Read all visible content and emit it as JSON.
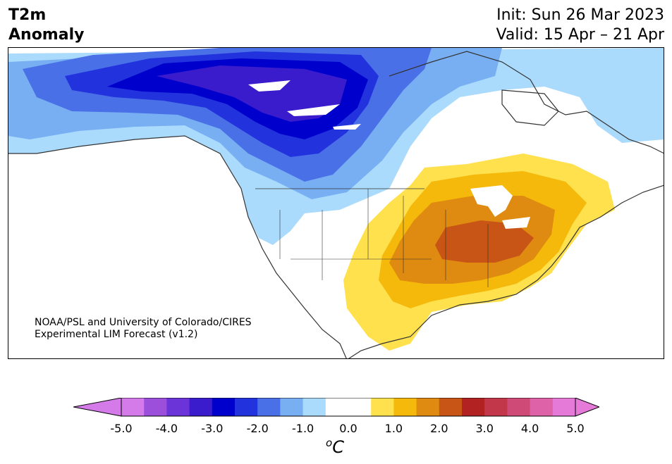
{
  "header": {
    "variable_line1": "T2m",
    "variable_line2": "Anomaly",
    "init_text": "Init: Sun 26 Mar 2023",
    "valid_text": "Valid: 15 Apr – 21 Apr"
  },
  "credit": {
    "line1": "NOAA/PSL and University of Colorado/CIRES",
    "line2": "Experimental LIM Forecast (v1.2)"
  },
  "colorbar": {
    "unit_base": "C",
    "unit_sup": "o",
    "tick_labels": [
      "-5.0",
      "-4.0",
      "-3.0",
      "-2.0",
      "-1.0",
      "0.0",
      "1.0",
      "2.0",
      "3.0",
      "4.0",
      "5.0"
    ],
    "ticks": [
      -5,
      -4,
      -3,
      -2,
      -1,
      0,
      1,
      2,
      3,
      4,
      5
    ],
    "colors": [
      "#d57be9",
      "#9b4fdb",
      "#6a34d8",
      "#3a1ccd",
      "#0000cd",
      "#2233dd",
      "#4a70e8",
      "#78aff2",
      "#aadafc",
      "#ffffff",
      "#ffffff",
      "#ffe04d",
      "#f4b90a",
      "#df8a10",
      "#c85516",
      "#b22222",
      "#c23749",
      "#d04a78",
      "#de62a8",
      "#e57ad9"
    ],
    "under_color": "#d57be9",
    "over_color": "#e57ad9"
  },
  "map": {
    "colors": {
      "ocean": "#ffffff",
      "cold_1": "#aadafc",
      "cold_2": "#78aff2",
      "cold_3": "#4a70e8",
      "cold_4": "#2233dd",
      "cold_5": "#0000cd",
      "cold_6": "#3a1ccd",
      "warm_1": "#ffe04d",
      "warm_2": "#f4b90a",
      "warm_3": "#df8a10",
      "warm_4": "#c85516",
      "coast": "#333333"
    }
  }
}
